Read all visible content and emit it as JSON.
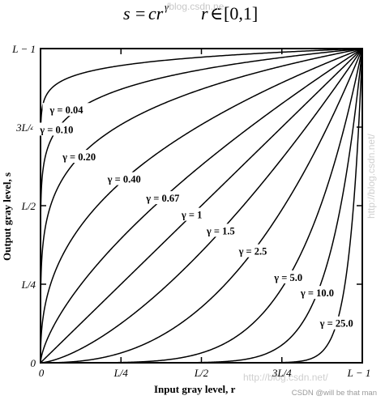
{
  "chart_data": {
    "type": "line",
    "equation": {
      "lhs": "s",
      "eq": "=",
      "rhs": "cr",
      "exponent": "γ",
      "domain_var": "r",
      "domain_sym": "∈",
      "domain_set": "[0,1]"
    },
    "xlabel": "Input gray level, r",
    "ylabel": "Output gray level, s",
    "x_ticks": [
      {
        "label": "0",
        "value": 0
      },
      {
        "label": "L/4",
        "value": 0.25
      },
      {
        "label": "L/2",
        "value": 0.5
      },
      {
        "label": "3L/4",
        "value": 0.75
      },
      {
        "label": "L − 1",
        "value": 1
      }
    ],
    "y_ticks": [
      {
        "label": "0",
        "value": 0
      },
      {
        "label": "L/4",
        "value": 0.25
      },
      {
        "label": "L/2",
        "value": 0.5
      },
      {
        "label": "3L/4",
        "value": 0.75
      },
      {
        "label": "L − 1",
        "value": 1
      }
    ],
    "xlim": [
      0,
      1
    ],
    "ylim": [
      0,
      1
    ],
    "grid": false,
    "series": [
      {
        "name": "γ = 0.04",
        "gamma": 0.04
      },
      {
        "name": "γ = 0.10",
        "gamma": 0.1
      },
      {
        "name": "γ = 0.20",
        "gamma": 0.2
      },
      {
        "name": "γ = 0.40",
        "gamma": 0.4
      },
      {
        "name": "γ = 0.67",
        "gamma": 0.67
      },
      {
        "name": "γ = 1",
        "gamma": 1
      },
      {
        "name": "γ = 1.5",
        "gamma": 1.5
      },
      {
        "name": "γ = 2.5",
        "gamma": 2.5
      },
      {
        "name": "γ = 5.0",
        "gamma": 5.0
      },
      {
        "name": "γ = 10.0",
        "gamma": 10.0
      },
      {
        "name": "γ = 25.0",
        "gamma": 25.0
      }
    ]
  },
  "watermarks": {
    "top": "/blog.csdn.ne",
    "right": "http://blog.csdn.net/",
    "bottom": "http://blog.csdn.net/",
    "credit": "CSDN @will be that man"
  }
}
